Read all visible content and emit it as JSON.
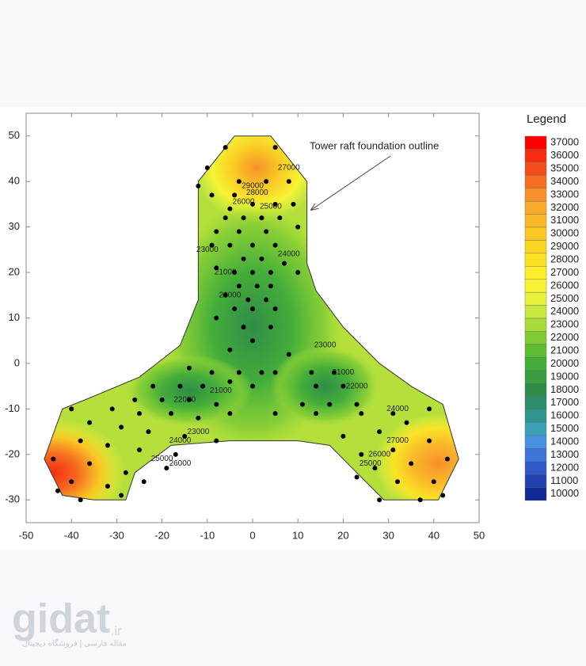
{
  "chart_data": {
    "type": "contour",
    "annotation": "Tower raft foundation outline",
    "xlim": [
      -50,
      50
    ],
    "xticks": [
      -50,
      -40,
      -30,
      -20,
      -10,
      0,
      10,
      20,
      30,
      40,
      50
    ],
    "ylim": [
      -35,
      55
    ],
    "yticks": [
      -30,
      -20,
      -10,
      0,
      10,
      20,
      30,
      40,
      50
    ],
    "points": {
      "color": "#000000",
      "x": [
        -6,
        5,
        -10,
        -3,
        3,
        8,
        -12,
        -9,
        -4,
        0,
        5,
        -5,
        9,
        -6,
        -2,
        2,
        6,
        10,
        -8,
        -3,
        3,
        -9,
        -5,
        0,
        5,
        -2,
        2,
        7,
        -8,
        -4,
        0,
        4,
        10,
        -3,
        1,
        4,
        -6,
        -1,
        3,
        -4,
        0,
        5,
        -8,
        -2,
        4,
        0,
        -5,
        8,
        -14,
        -9,
        -3,
        2,
        5,
        13,
        18,
        -22,
        -16,
        -11,
        -5,
        0,
        14,
        20,
        -26,
        -20,
        -14,
        -8,
        11,
        17,
        23,
        -31,
        -25,
        -18,
        -12,
        -5,
        5,
        14,
        24,
        31,
        -40,
        -36,
        -29,
        -23,
        -15,
        -8,
        -38,
        -32,
        -25,
        -17,
        -44,
        -36,
        -28,
        -19,
        -40,
        -32,
        -24,
        -38,
        -29,
        -43,
        39,
        34,
        28,
        20,
        39,
        31,
        24,
        43,
        35,
        27,
        40,
        32,
        23,
        37,
        28,
        42
      ],
      "y": [
        47.5,
        47.5,
        43,
        40,
        40,
        40,
        39,
        37,
        37,
        35,
        35,
        34,
        35,
        32,
        32,
        32,
        32,
        30,
        29,
        29,
        29,
        26,
        26,
        26,
        26,
        23,
        23,
        22,
        21,
        20,
        20,
        20,
        20,
        17,
        17,
        17,
        15,
        14,
        14,
        12,
        12,
        12,
        10,
        8,
        8,
        5,
        3,
        2,
        -1,
        -2,
        -2,
        -2,
        -2,
        -2,
        -2,
        -5,
        -5,
        -5,
        -4,
        -5,
        -5,
        -5,
        -8,
        -8,
        -8,
        -9,
        -9,
        -9,
        -9,
        -10,
        -11,
        -11,
        -12,
        -11,
        -11,
        -11,
        -11,
        -11,
        -10,
        -13,
        -14,
        -15,
        -16,
        -17,
        -17,
        -18,
        -19,
        -20,
        -21,
        -22,
        -24,
        -23,
        -26,
        -27,
        -26,
        -30,
        -29,
        -28,
        -10,
        -13,
        -15,
        -16,
        -17,
        -19,
        -20,
        -21,
        -22,
        -23,
        -26,
        -26,
        -25,
        -30,
        -30,
        -29
      ]
    },
    "contour_labels": {
      "x": [
        0,
        1,
        -2,
        4,
        8,
        -10,
        8,
        -6,
        -5,
        16,
        20,
        23,
        32,
        -7,
        -15,
        -12,
        -16,
        -20,
        -16,
        26,
        28,
        32
      ],
      "y": [
        39,
        37.5,
        35.5,
        34.5,
        43,
        25,
        24,
        20,
        15,
        4,
        -2,
        -5,
        -10,
        -6,
        -8,
        -15,
        -17,
        -21,
        -22,
        -22,
        -20,
        -17
      ],
      "values": [
        29000,
        28000,
        26000,
        25000,
        27000,
        23000,
        24000,
        21000,
        20000,
        23000,
        21000,
        22000,
        24000,
        21000,
        22000,
        23000,
        24000,
        25000,
        26000,
        25000,
        26000,
        27000
      ]
    },
    "legend": {
      "title": "Legend",
      "levels": [
        37000,
        36000,
        35000,
        34000,
        33000,
        32000,
        31000,
        30000,
        29000,
        28000,
        27000,
        26000,
        25000,
        24000,
        23000,
        22000,
        21000,
        20000,
        19000,
        18000,
        17000,
        16000,
        15000,
        14000,
        13000,
        12000,
        11000,
        10000
      ],
      "colors": [
        "#ff0000",
        "#f72a12",
        "#f44d1c",
        "#f56e22",
        "#f7902a",
        "#f9a92c",
        "#f9b92a",
        "#f9c823",
        "#fad623",
        "#fbe225",
        "#fcee2b",
        "#f7f436",
        "#e6f23b",
        "#c7e83c",
        "#a8dc39",
        "#7ecb34",
        "#5cbd35",
        "#45ae3a",
        "#3a9e40",
        "#2f8c47",
        "#2e8c6a",
        "#30948f",
        "#3da0b8",
        "#4a90e0",
        "#3d74d8",
        "#2f58c8",
        "#2241b0",
        "#112a96"
      ]
    }
  },
  "watermark": {
    "logo": "gidat",
    "suffix": ".ir",
    "tagline": "مقاله فارسی | فروشگاه دیجیتال"
  }
}
